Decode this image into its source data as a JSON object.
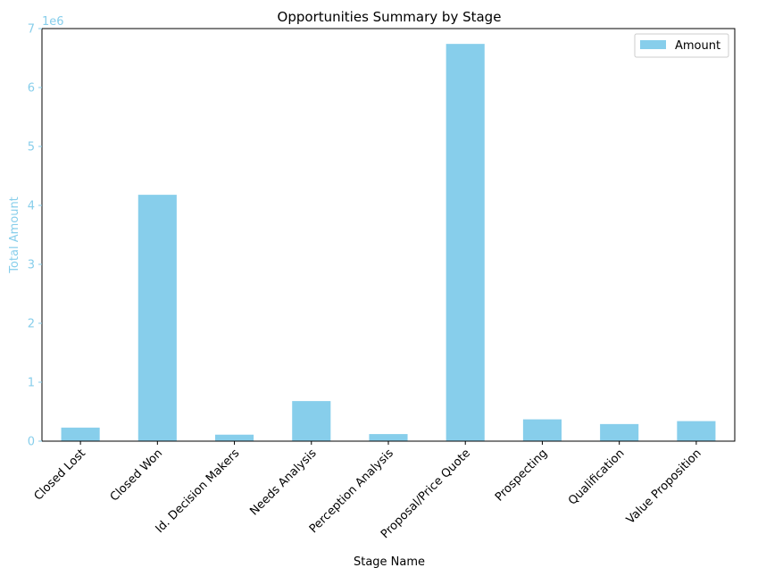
{
  "chart_data": {
    "type": "bar",
    "title": "Opportunities Summary by Stage",
    "xlabel": "Stage Name",
    "ylabel": "Total Amount",
    "y_multiplier_label": "1e6",
    "ylim": [
      0,
      7000000
    ],
    "yticks": [
      0,
      1000000,
      2000000,
      3000000,
      4000000,
      5000000,
      6000000,
      7000000
    ],
    "ytick_labels": [
      "0",
      "1",
      "2",
      "3",
      "4",
      "5",
      "6",
      "7"
    ],
    "grid": false,
    "legend_position": "top-right",
    "categories": [
      "Closed Lost",
      "Closed Won",
      "Id. Decision Makers",
      "Needs Analysis",
      "Perception Analysis",
      "Proposal/Price Quote",
      "Prospecting",
      "Qualification",
      "Value Proposition"
    ],
    "series": [
      {
        "name": "Amount",
        "color": "#87CEEB",
        "values": [
          230000,
          4180000,
          110000,
          680000,
          120000,
          6740000,
          370000,
          290000,
          340000
        ]
      }
    ],
    "y_axis_color": "#87CEEB"
  }
}
